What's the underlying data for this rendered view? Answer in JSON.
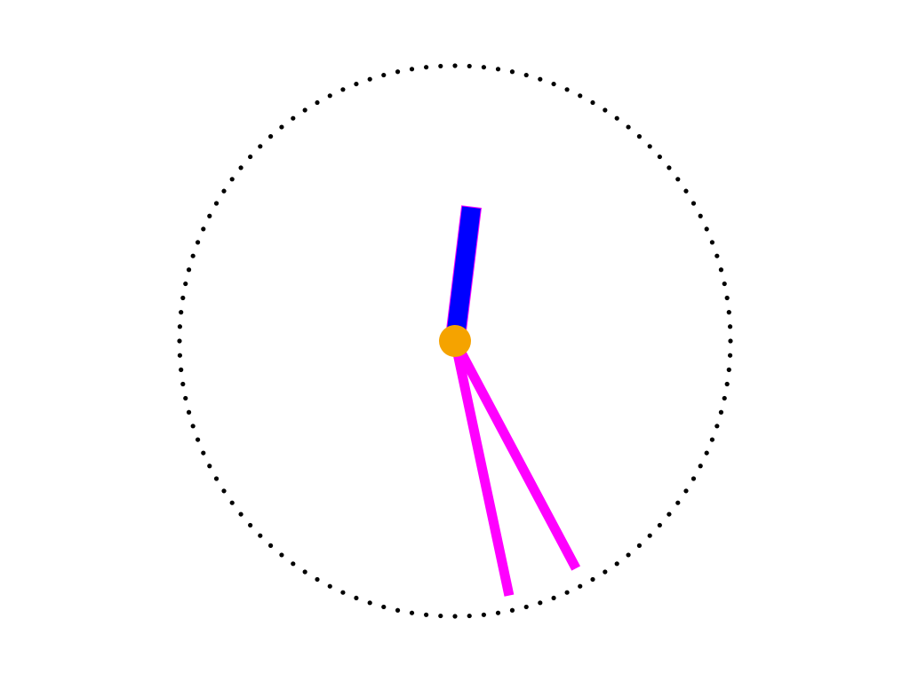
{
  "clock": {
    "tick_count": 120,
    "colors": {
      "background": "#ffffff",
      "dial_dots": "#000000",
      "hour_hand": "#0000ff",
      "hour_hand_outline": "#ff00ff",
      "minute_hand": "#ff00ff",
      "second_hand": "#ff00ff",
      "center_cap": "#f5a300"
    },
    "hands": {
      "hour": {
        "angle_deg": 7
      },
      "minute": {
        "angle_deg": 152
      },
      "second": {
        "angle_deg": 168
      }
    }
  }
}
